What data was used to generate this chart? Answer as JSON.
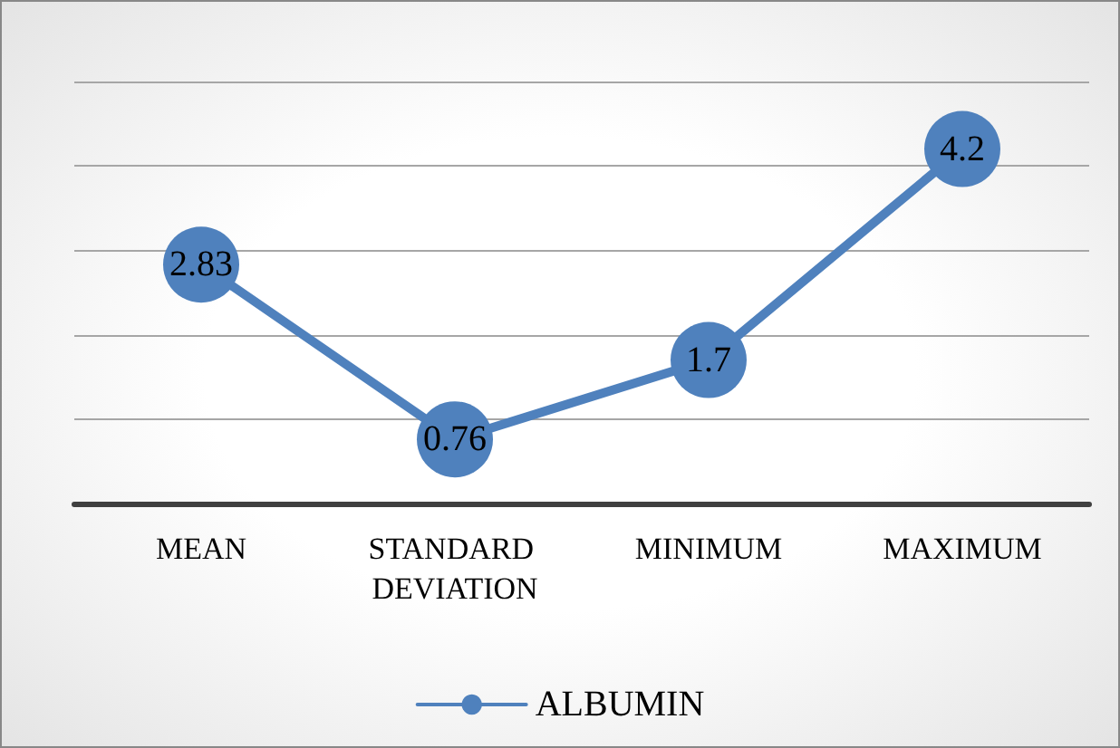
{
  "chart_data": {
    "type": "line",
    "categories": [
      "MEAN",
      "STANDARD DEVIATION",
      "MINIMUM",
      "MAXIMUM"
    ],
    "series": [
      {
        "name": "ALBUMIN",
        "color": "#4f81bd",
        "values": [
          2.83,
          0.76,
          1.7,
          4.2
        ]
      }
    ],
    "ylim": [
      0,
      5
    ],
    "yticks": [
      {
        "value": 0,
        "label": null
      },
      {
        "value": 1,
        "label": null
      },
      {
        "value": 2,
        "label": null
      },
      {
        "value": 3,
        "label": null
      },
      {
        "value": 4,
        "label": null
      },
      {
        "value": 5,
        "label": null
      }
    ],
    "tick_labels": "x",
    "grid": "y",
    "legend": "bottom",
    "marker": "circle",
    "line_style": "solid",
    "data_labels": true
  }
}
